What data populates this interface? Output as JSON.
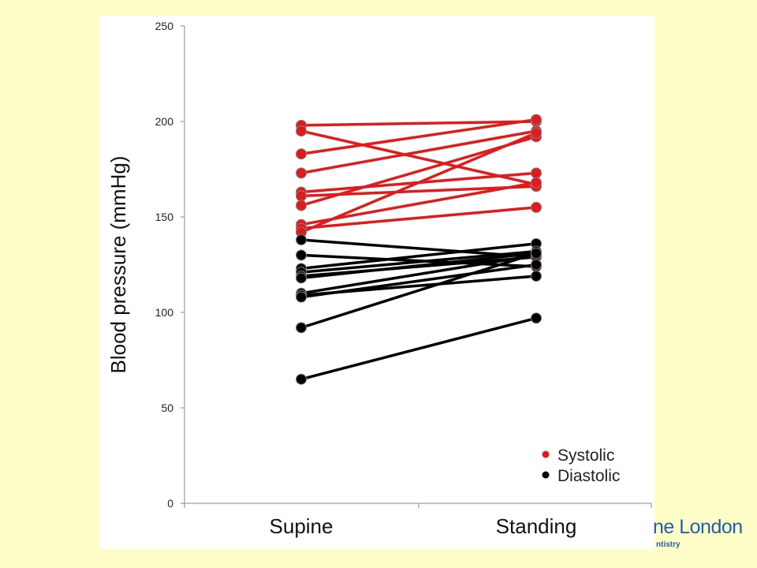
{
  "chart_data": {
    "type": "line",
    "title": "",
    "xlabel": "",
    "ylabel": "Blood pressure (mmHg)",
    "categories": [
      "Supine",
      "Standing"
    ],
    "ylim": [
      0,
      250
    ],
    "yticks": [
      0,
      50,
      100,
      150,
      200,
      250
    ],
    "grid": false,
    "legend_position": "bottom-right",
    "series": [
      {
        "name": "Systolic",
        "color": "#e01b1b",
        "pairs": [
          [
            198,
            200
          ],
          [
            195,
            167
          ],
          [
            183,
            201
          ],
          [
            173,
            195
          ],
          [
            163,
            173
          ],
          [
            161,
            166
          ],
          [
            156,
            192
          ],
          [
            146,
            168
          ],
          [
            144,
            155
          ],
          [
            142,
            194
          ]
        ]
      },
      {
        "name": "Diastolic",
        "color": "#000000",
        "pairs": [
          [
            138,
            129
          ],
          [
            130,
            124
          ],
          [
            123,
            136
          ],
          [
            121,
            132
          ],
          [
            119,
            129
          ],
          [
            118,
            131
          ],
          [
            110,
            130
          ],
          [
            109,
            119
          ],
          [
            108,
            125
          ],
          [
            92,
            131
          ],
          [
            65,
            97
          ]
        ]
      }
    ]
  },
  "logo": {
    "line1": "ne London",
    "line2": "ntistry"
  }
}
